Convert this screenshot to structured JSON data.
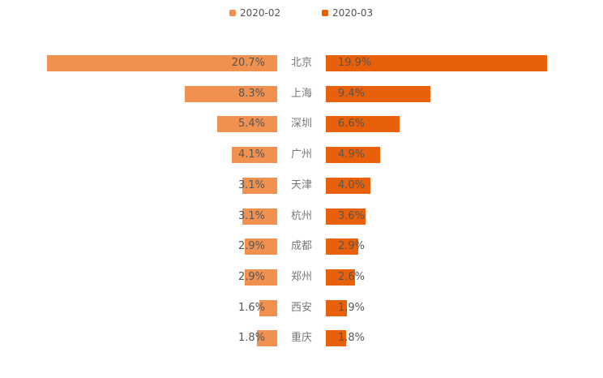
{
  "chart_data": {
    "type": "bar",
    "orientation": "horizontal-butterfly",
    "categories": [
      "北京",
      "上海",
      "深圳",
      "广州",
      "天津",
      "杭州",
      "成都",
      "郑州",
      "西安",
      "重庆"
    ],
    "series": [
      {
        "name": "2020-02",
        "color": "#F0914F",
        "values": [
          20.7,
          8.3,
          5.4,
          4.1,
          3.1,
          3.1,
          2.9,
          2.9,
          1.6,
          1.8
        ],
        "labels": [
          "20.7%",
          "8.3%",
          "5.4%",
          "4.1%",
          "3.1%",
          "3.1%",
          "2.9%",
          "2.9%",
          "1.6%",
          "1.8%"
        ]
      },
      {
        "name": "2020-03",
        "color": "#E8610A",
        "values": [
          19.9,
          9.4,
          6.6,
          4.9,
          4.0,
          3.6,
          2.9,
          2.6,
          1.9,
          1.8
        ],
        "labels": [
          "19.9%",
          "9.4%",
          "6.6%",
          "4.9%",
          "4.0%",
          "3.6%",
          "2.9%",
          "2.6%",
          "1.9%",
          "1.8%"
        ]
      }
    ],
    "unit": "%",
    "legend_position": "top-center",
    "grid": false
  }
}
